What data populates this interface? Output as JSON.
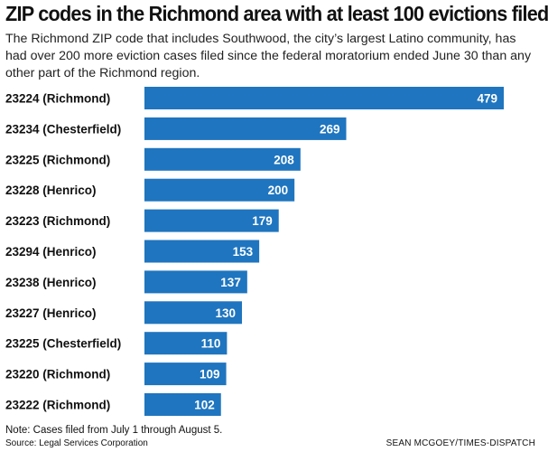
{
  "header": {
    "title": "ZIP codes in the Richmond area with at least 100 evictions filed",
    "subtitle": "The Richmond ZIP code that includes Southwood, the city’s largest Latino community, has had over 200 more eviction cases filed since the federal moratorium ended June 30 than any other part of the Richmond region."
  },
  "footer": {
    "note": "Note: Cases filed from July 1 through August 5.",
    "source": "Source: Legal Services Corporation",
    "credit": "SEAN MCGOEY/TIMES-DISPATCH"
  },
  "colors": {
    "bar": "#1f75bf",
    "value_text": "#ffffff"
  },
  "chart_data": {
    "type": "bar",
    "orientation": "horizontal",
    "title": "ZIP codes in the Richmond area with at least 100 evictions filed",
    "xlabel": "",
    "ylabel": "",
    "categories": [
      "23224 (Richmond)",
      "23234 (Chesterfield)",
      "23225 (Richmond)",
      "23228 (Henrico)",
      "23223 (Richmond)",
      "23294 (Henrico)",
      "23238 (Henrico)",
      "23227 (Henrico)",
      "23225 (Chesterfield)",
      "23220 (Richmond)",
      "23222 (Richmond)"
    ],
    "values": [
      479,
      269,
      208,
      200,
      179,
      153,
      137,
      130,
      110,
      109,
      102
    ],
    "grid": false,
    "legend": "none",
    "data_labels": "inside-end"
  }
}
